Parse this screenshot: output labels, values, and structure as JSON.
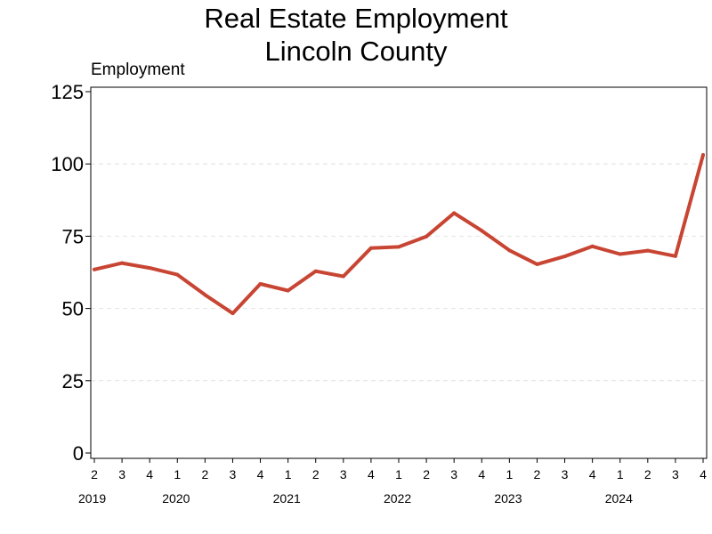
{
  "chart_data": {
    "type": "line",
    "title": "Real Estate Employment",
    "subtitle": "Lincoln County",
    "ylabel": "Employment",
    "xlabel": "",
    "ylim": [
      0,
      125
    ],
    "yticks": [
      0,
      25,
      50,
      75,
      100,
      125
    ],
    "grid": "horizontal dashed",
    "line_color": "#c84533",
    "quarters": [
      "2",
      "3",
      "4",
      "1",
      "2",
      "3",
      "4",
      "1",
      "2",
      "3",
      "4",
      "1",
      "2",
      "3",
      "4",
      "1",
      "2",
      "3",
      "4",
      "1",
      "2",
      "3",
      "4"
    ],
    "years": [
      {
        "label": "2019",
        "start_index": 0
      },
      {
        "label": "2020",
        "start_index": 3
      },
      {
        "label": "2021",
        "start_index": 7
      },
      {
        "label": "2022",
        "start_index": 11
      },
      {
        "label": "2023",
        "start_index": 15
      },
      {
        "label": "2024",
        "start_index": 19
      }
    ],
    "series": [
      {
        "values": [
          63.5,
          65.7,
          64.0,
          61.7,
          54.7,
          48.3,
          58.5,
          56.2,
          62.9,
          61.1,
          70.9,
          71.3,
          74.9,
          83.0,
          76.9,
          70.1,
          65.3,
          68.0,
          71.5,
          68.8,
          70.0,
          68.1,
          103.1
        ]
      }
    ]
  }
}
